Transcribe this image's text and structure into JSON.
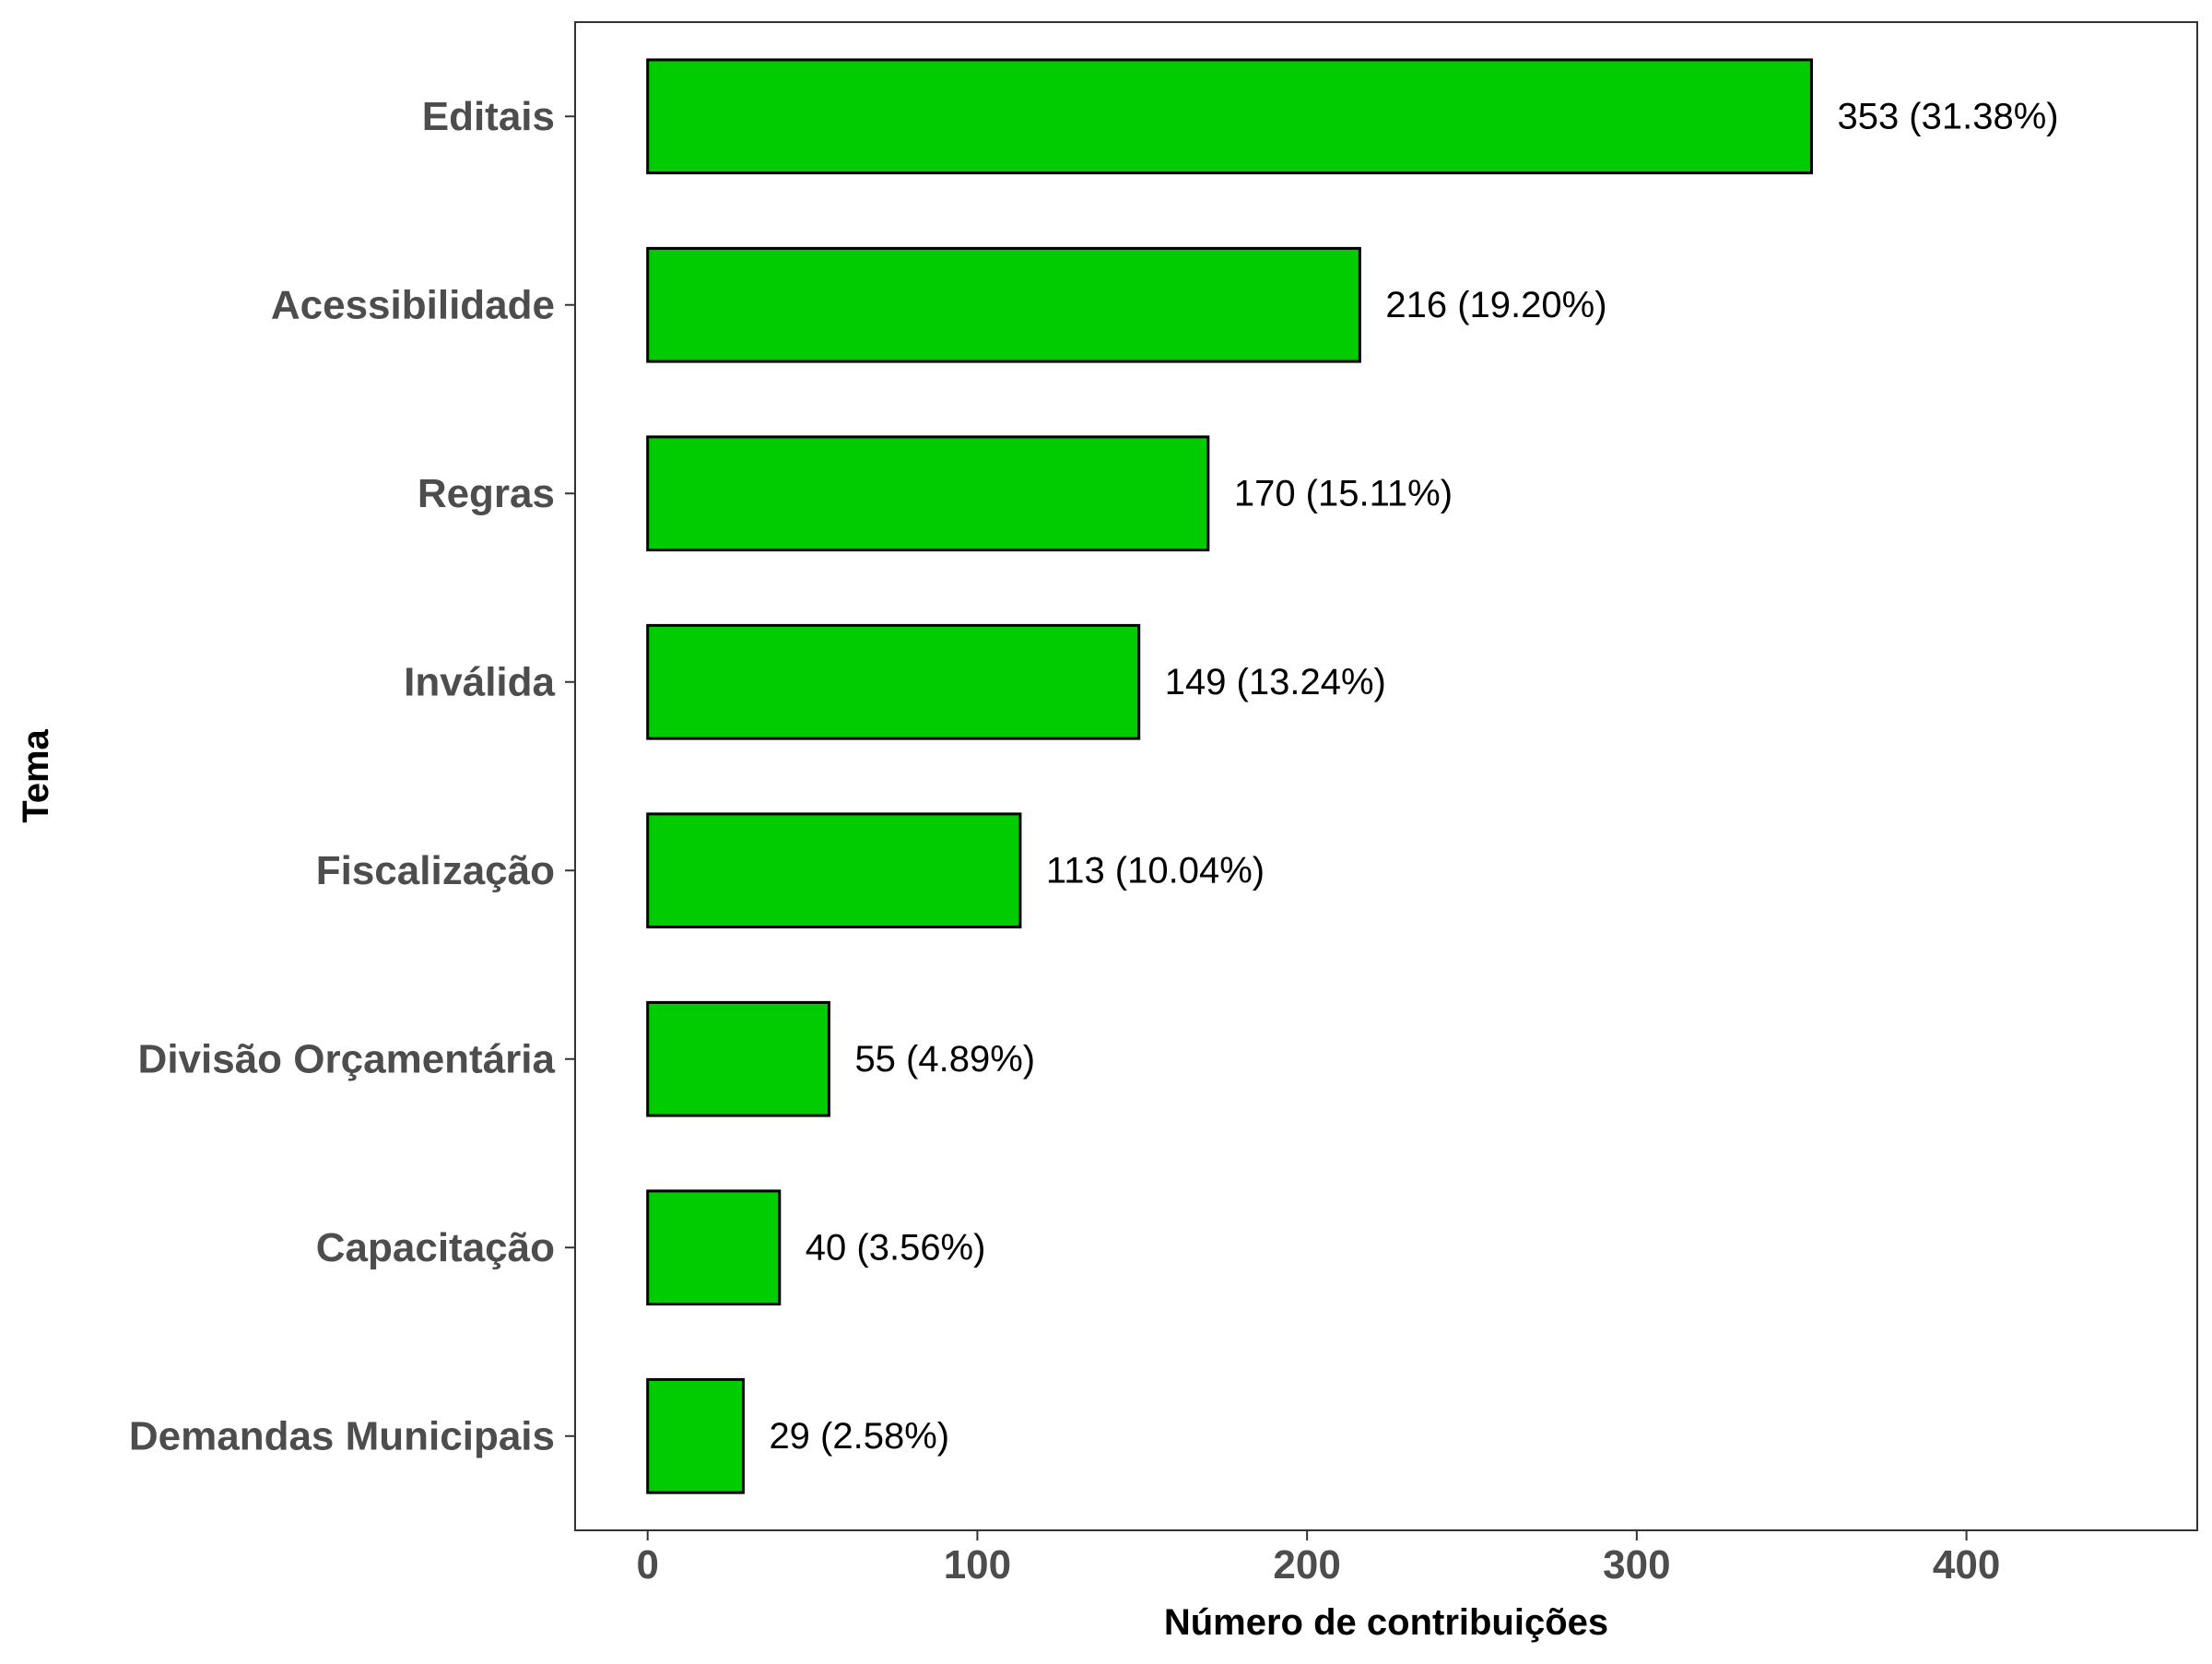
{
  "chart_data": {
    "type": "bar",
    "orientation": "horizontal",
    "categories": [
      "Editais",
      "Acessibilidade",
      "Regras",
      "Inválida",
      "Fiscalização",
      "Divisão Orçamentária",
      "Capacitação",
      "Demandas Municipais"
    ],
    "values": [
      353,
      216,
      170,
      149,
      113,
      55,
      40,
      29
    ],
    "data_labels": [
      "353 (31.38%)",
      "216 (19.20%)",
      "170 (15.11%)",
      "149 (13.24%)",
      "113 (10.04%)",
      "55 (4.89%)",
      "40 (3.56%)",
      "29 (2.58%)"
    ],
    "xlabel": "Número de contribuições",
    "ylabel": "Tema",
    "xlim": [
      -22,
      470
    ],
    "xticks": [
      0,
      100,
      200,
      300,
      400
    ],
    "xtick_labels": [
      "0",
      "100",
      "200",
      "300",
      "400"
    ],
    "grid": false,
    "legend": "none",
    "colors": {
      "bar_fill": "#00cc00",
      "bar_stroke": "#000000",
      "tick_label": "#4d4d4d",
      "axis_title": "#000000",
      "panel_border": "#333333"
    }
  }
}
